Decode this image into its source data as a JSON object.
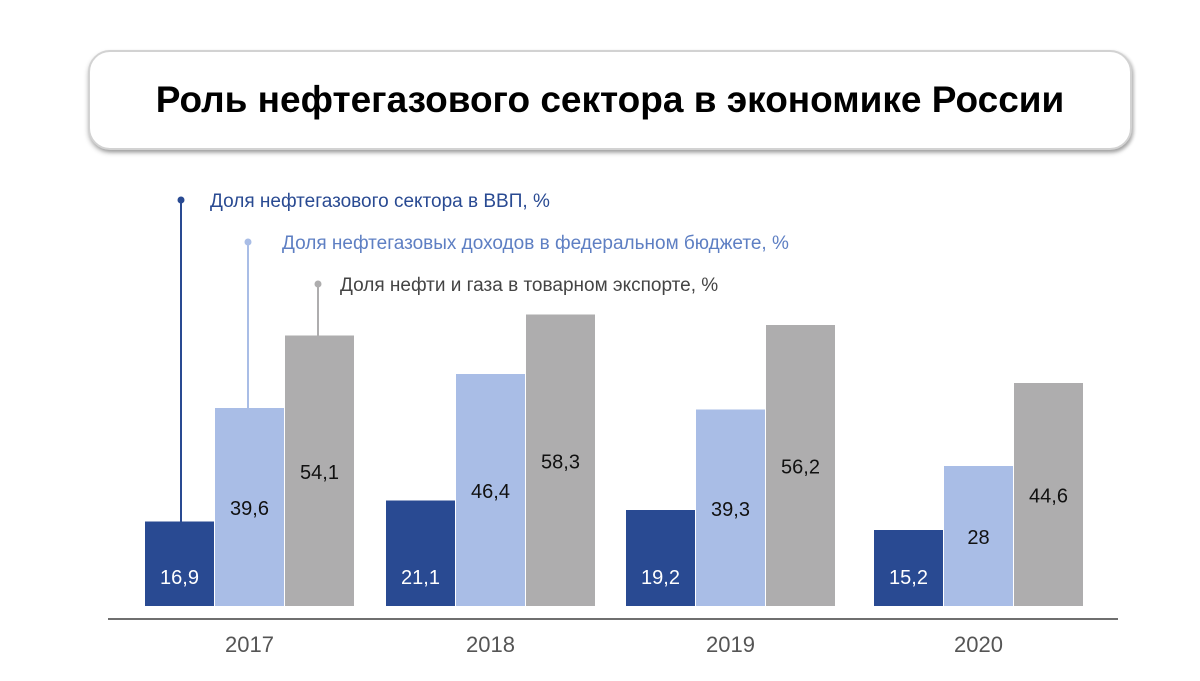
{
  "title": "Роль нефтегазового сектора в экономике России",
  "colors": {
    "gdp": "#294a92",
    "budget": "#a9bde6",
    "exports": "#aeadae",
    "axis": "#6f6f6f",
    "budget_text": "#5e7fc3",
    "exports_text": "#444444"
  },
  "chart_data": {
    "type": "bar",
    "categories": [
      "2017",
      "2018",
      "2019",
      "2020"
    ],
    "series": [
      {
        "name": "Доля нефтегазового сектора в ВВП, %",
        "values": [
          "16,9",
          "21,1",
          "19,2",
          "15,2"
        ],
        "values_num": [
          16.9,
          21.1,
          19.2,
          15.2
        ]
      },
      {
        "name": "Доля нефтегазовых доходов в федеральном бюджете, %",
        "values": [
          "39,6",
          "46,4",
          "39,3",
          "28"
        ],
        "values_num": [
          39.6,
          46.4,
          39.3,
          28.0
        ]
      },
      {
        "name": "Доля нефти и газа в товарном экспорте, %",
        "values": [
          "54,1",
          "58,3",
          "56,2",
          "44,6"
        ],
        "values_num": [
          54.1,
          58.3,
          56.2,
          44.6
        ]
      }
    ],
    "legend_position": "top-left, with leader lines to the 2017 bars",
    "grid": false
  }
}
